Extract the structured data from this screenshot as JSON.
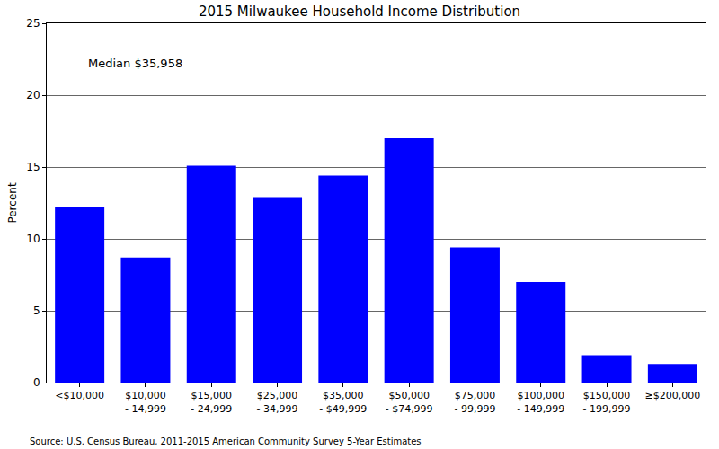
{
  "chart_data": {
    "type": "bar",
    "title": "2015 Milwaukee Household Income Distribution",
    "y_label": "Percent",
    "categories": [
      "<$10,000",
      "$10,000 - 14,999",
      "$15,000 - 24,999",
      "$25,000 - 34,999",
      "$35,000 - $49,999",
      "$50,000 - $74,999",
      "$75,000 - 99,999",
      "$100,000 - 149,999",
      "$150,000 - 199,999",
      "≥$200,000"
    ],
    "values": [
      12.2,
      8.7,
      15.1,
      12.9,
      14.4,
      17.0,
      9.4,
      7.0,
      1.9,
      1.3
    ],
    "color": "#0000ff",
    "ylim": [
      0,
      25
    ],
    "yticks": [
      0,
      5,
      10,
      15,
      20,
      25
    ],
    "grid": true,
    "annotations": [
      "Median $35,958"
    ],
    "source": "Source: U.S. Census Bureau, 2011-2015 American Community Survey 5-Year Estimates"
  }
}
